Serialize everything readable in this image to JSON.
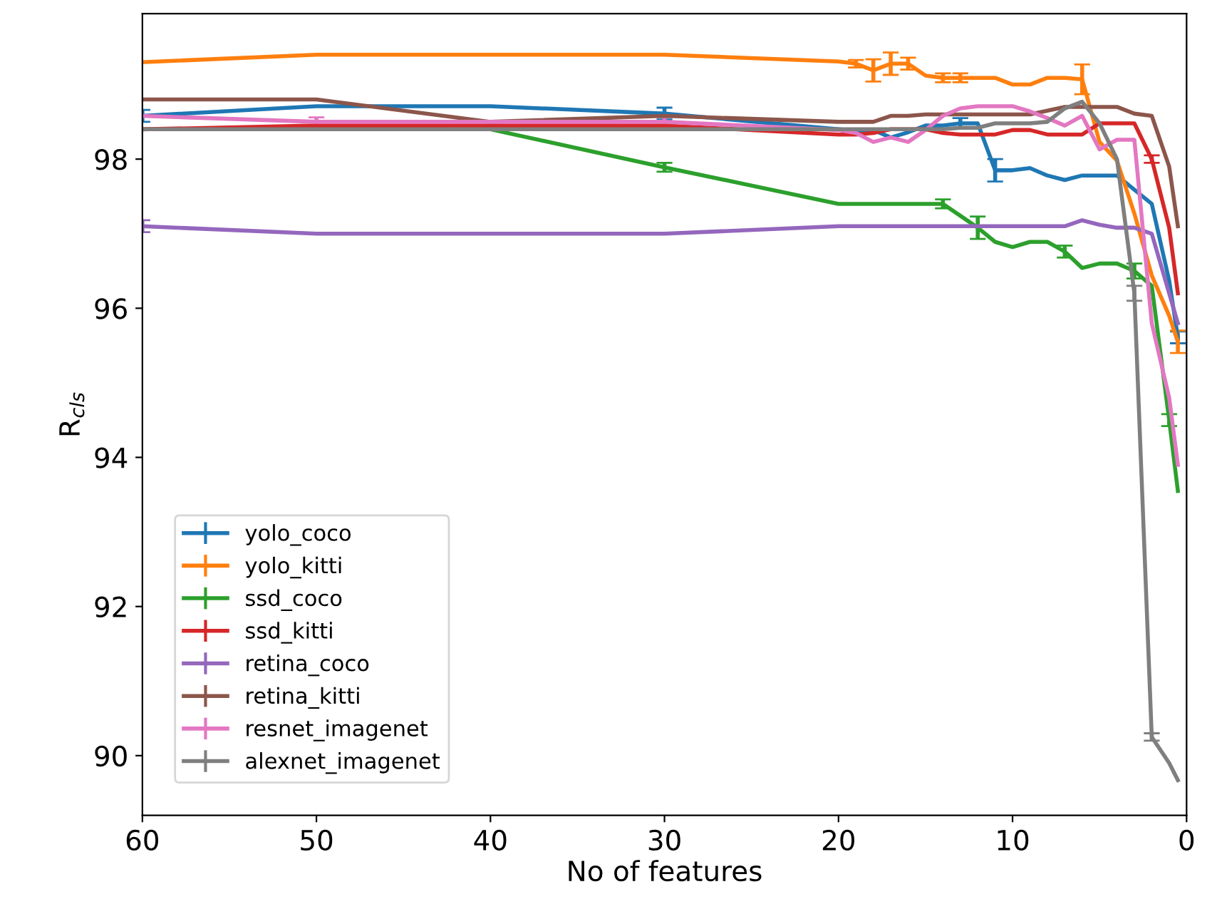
{
  "chart_data": {
    "type": "line",
    "xlabel": "No of features",
    "ylabel": "R$_{cls}$",
    "x": [
      60,
      50,
      40,
      30,
      20,
      19,
      18,
      17,
      16,
      15,
      14,
      13,
      12,
      11,
      10,
      9,
      8,
      7,
      6,
      5,
      4,
      3,
      2,
      1,
      0.5
    ],
    "xlim": [
      60,
      0
    ],
    "xticks": [
      60,
      50,
      40,
      30,
      20,
      10,
      0
    ],
    "ylim": [
      89.2,
      99.95
    ],
    "yticks": [
      90,
      92,
      94,
      96,
      98
    ],
    "grid": false,
    "legend": "bottom left",
    "marker": "none",
    "line_style": "solid",
    "series": [
      {
        "name": "yolo_coco",
        "color": "#1f77b4",
        "values": [
          98.58,
          98.71,
          98.71,
          98.61,
          98.4,
          98.38,
          98.39,
          98.29,
          98.36,
          98.45,
          98.45,
          98.48,
          98.48,
          97.85,
          97.85,
          97.88,
          97.78,
          97.72,
          97.78,
          97.78,
          97.78,
          97.59,
          97.4,
          96.37,
          95.61
        ],
        "errors": [
          0.08,
          null,
          null,
          0.08,
          null,
          null,
          null,
          null,
          null,
          null,
          null,
          0.07,
          null,
          0.15,
          null,
          null,
          null,
          null,
          null,
          null,
          null,
          null,
          null,
          null,
          0.08
        ]
      },
      {
        "name": "yolo_kitti",
        "color": "#ff7f0e",
        "values": [
          99.3,
          99.4,
          99.4,
          99.4,
          99.31,
          99.28,
          99.19,
          99.28,
          99.28,
          99.12,
          99.09,
          99.09,
          99.09,
          99.09,
          99.0,
          99.0,
          99.09,
          99.09,
          99.07,
          98.23,
          97.98,
          97.27,
          96.44,
          95.9,
          95.55
        ],
        "errors": [
          null,
          null,
          null,
          null,
          null,
          0.05,
          0.15,
          0.15,
          0.08,
          null,
          0.06,
          0.06,
          null,
          null,
          null,
          null,
          null,
          null,
          0.2,
          null,
          null,
          null,
          null,
          null,
          0.15
        ]
      },
      {
        "name": "ssd_coco",
        "color": "#2ca02c",
        "values": [
          98.4,
          98.4,
          98.4,
          97.89,
          97.4,
          97.4,
          97.4,
          97.4,
          97.4,
          97.4,
          97.4,
          97.24,
          97.08,
          96.89,
          96.82,
          96.89,
          96.89,
          96.76,
          96.54,
          96.6,
          96.6,
          96.5,
          96.3,
          94.5,
          93.55
        ],
        "errors": [
          null,
          null,
          null,
          0.06,
          null,
          null,
          null,
          null,
          null,
          null,
          0.06,
          null,
          0.15,
          null,
          null,
          null,
          null,
          0.08,
          null,
          null,
          null,
          0.1,
          null,
          0.08,
          null
        ]
      },
      {
        "name": "ssd_kitti",
        "color": "#d62728",
        "values": [
          98.4,
          98.45,
          98.45,
          98.45,
          98.33,
          98.33,
          98.35,
          98.4,
          98.4,
          98.4,
          98.35,
          98.33,
          98.33,
          98.33,
          98.39,
          98.39,
          98.33,
          98.33,
          98.33,
          98.48,
          98.48,
          98.48,
          98.0,
          97.08,
          96.2
        ],
        "errors": [
          null,
          null,
          null,
          null,
          null,
          null,
          null,
          null,
          null,
          null,
          null,
          null,
          null,
          null,
          null,
          null,
          null,
          null,
          null,
          null,
          null,
          null,
          0.05,
          null,
          null
        ]
      },
      {
        "name": "retina_coco",
        "color": "#9467bd",
        "values": [
          97.1,
          97.0,
          97.0,
          97.0,
          97.1,
          97.1,
          97.1,
          97.1,
          97.1,
          97.1,
          97.1,
          97.1,
          97.1,
          97.1,
          97.1,
          97.1,
          97.1,
          97.1,
          97.18,
          97.12,
          97.08,
          97.08,
          97.0,
          96.2,
          95.8
        ],
        "errors": [
          0.08,
          null,
          null,
          null,
          null,
          null,
          null,
          null,
          null,
          null,
          null,
          null,
          null,
          null,
          null,
          null,
          null,
          null,
          null,
          null,
          null,
          null,
          null,
          null,
          null
        ]
      },
      {
        "name": "retina_kitti",
        "color": "#8c564b",
        "values": [
          98.8,
          98.8,
          98.5,
          98.58,
          98.5,
          98.5,
          98.5,
          98.58,
          98.58,
          98.6,
          98.6,
          98.6,
          98.6,
          98.6,
          98.6,
          98.6,
          98.65,
          98.7,
          98.7,
          98.7,
          98.7,
          98.61,
          98.58,
          97.9,
          97.1
        ],
        "errors": [
          null,
          null,
          null,
          null,
          null,
          null,
          null,
          null,
          null,
          null,
          null,
          null,
          null,
          null,
          null,
          null,
          null,
          null,
          null,
          null,
          null,
          null,
          null,
          null,
          null
        ]
      },
      {
        "name": "resnet_imagenet",
        "color": "#e377c2",
        "values": [
          98.58,
          98.5,
          98.5,
          98.5,
          98.39,
          98.35,
          98.23,
          98.29,
          98.23,
          98.39,
          98.58,
          98.68,
          98.71,
          98.71,
          98.71,
          98.64,
          98.55,
          98.45,
          98.58,
          98.13,
          98.26,
          98.26,
          95.8,
          94.8,
          93.9
        ],
        "errors": [
          null,
          0.06,
          null,
          0.06,
          null,
          null,
          null,
          null,
          null,
          null,
          null,
          null,
          null,
          null,
          null,
          null,
          null,
          null,
          null,
          null,
          null,
          null,
          null,
          null,
          null
        ]
      },
      {
        "name": "alexnet_imagenet",
        "color": "#7f7f7f",
        "values": [
          98.4,
          98.4,
          98.4,
          98.4,
          98.4,
          98.4,
          98.4,
          98.4,
          98.4,
          98.4,
          98.4,
          98.42,
          98.42,
          98.48,
          98.48,
          98.48,
          98.5,
          98.68,
          98.77,
          98.48,
          98.0,
          96.2,
          90.25,
          89.9,
          89.67
        ],
        "errors": [
          null,
          null,
          null,
          null,
          null,
          null,
          null,
          null,
          null,
          null,
          null,
          null,
          null,
          null,
          null,
          null,
          null,
          null,
          null,
          null,
          null,
          0.1,
          0.05,
          null,
          null
        ]
      }
    ]
  }
}
